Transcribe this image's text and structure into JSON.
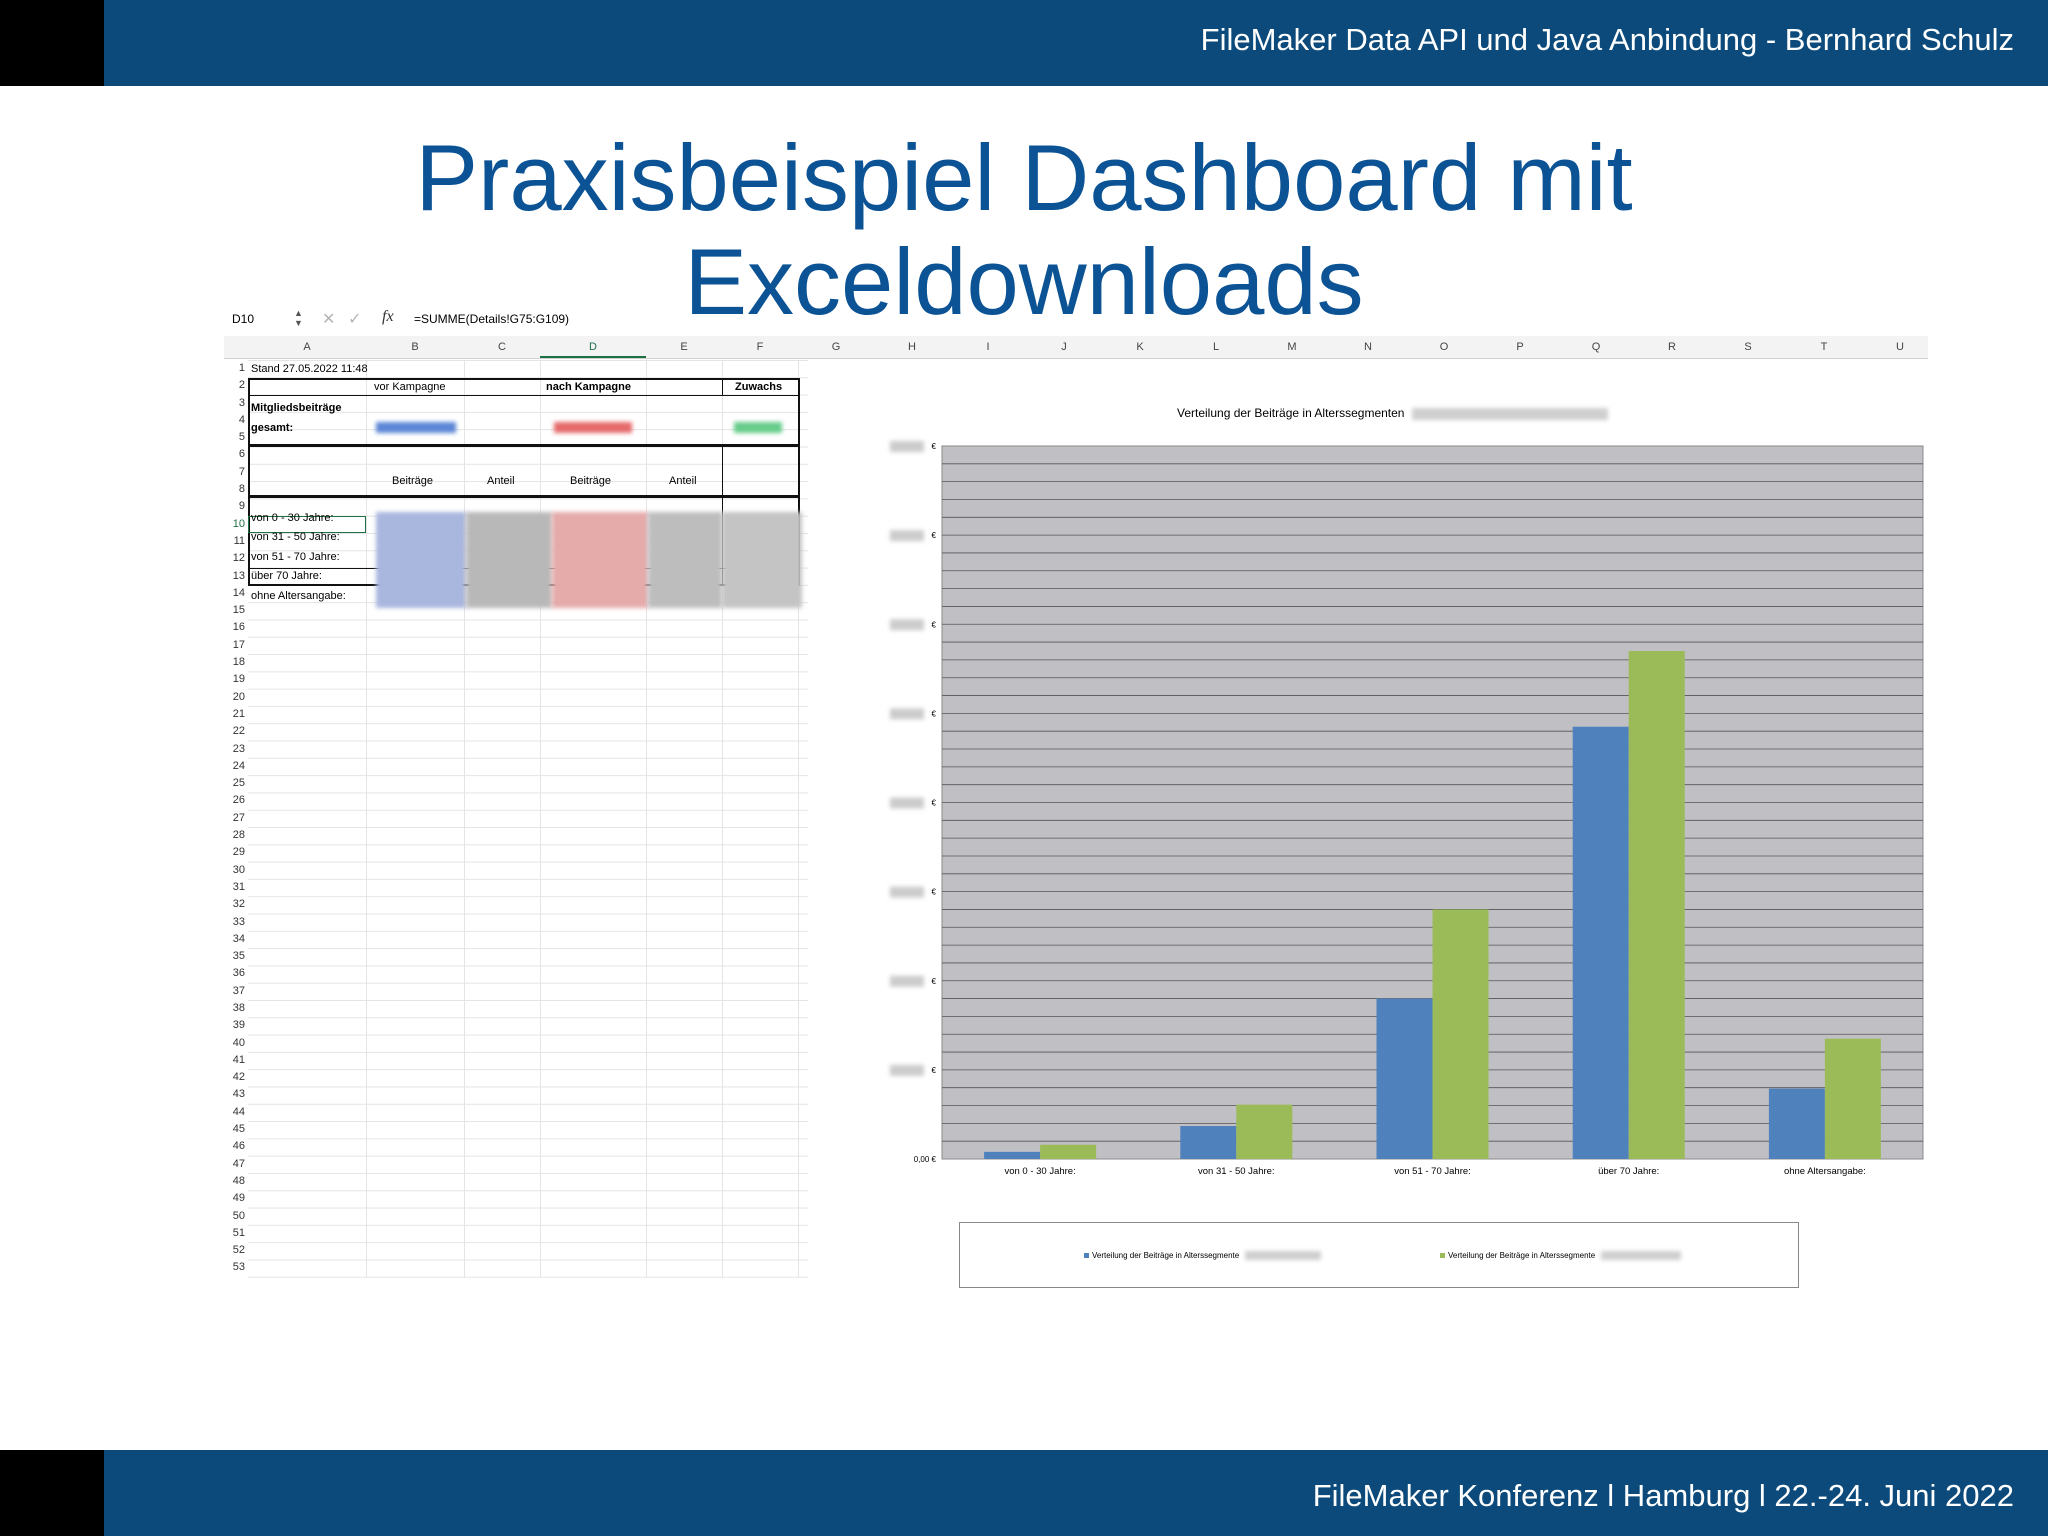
{
  "header": {
    "text": "FileMaker Data API und Java Anbindung - Bernhard Schulz"
  },
  "title": {
    "line1": "Praxisbeispiel Dashboard mit",
    "line2": "Exceldownloads"
  },
  "footer": {
    "text": "FileMaker Konferenz l Hamburg l  22.-24. Juni 2022"
  },
  "spreadsheet": {
    "cell_ref": "D10",
    "formula": "=SUMME(Details!G75:G109)",
    "columns": [
      "A",
      "B",
      "C",
      "D",
      "E",
      "F",
      "G",
      "H",
      "I",
      "J",
      "K",
      "L",
      "M",
      "N",
      "O",
      "P",
      "Q",
      "R",
      "S",
      "T",
      "U"
    ],
    "selected_column": "D",
    "selected_row": 10,
    "row_count": 53,
    "cells": {
      "a1": "Stand 27.05.2022 11:48",
      "b2": "vor Kampagne",
      "d2": "nach Kampagne",
      "f2": "Zuwachs",
      "a3": "Mitgliedsbeiträge",
      "a4": "gesamt:",
      "b7": "Beiträge",
      "c7": "Anteil",
      "d7": "Beiträge",
      "e7": "Anteil",
      "a9": "von 0 - 30 Jahre:",
      "a10": "von 31 - 50 Jahre:",
      "a11": "von 51 - 70 Jahre:",
      "a12": "über 70 Jahre:",
      "a13": "ohne Altersangabe:"
    },
    "colors": {
      "blue": "#4f7fc1",
      "red": "#e05a5a",
      "green": "#5cc080"
    }
  },
  "chart_data": {
    "type": "bar",
    "title": "Verteilung der Beiträge in Alterssegmenten",
    "categories": [
      "von 0 - 30 Jahre:",
      "von 31 - 50 Jahre:",
      "von 51 - 70 Jahre:",
      "über 70 Jahre:",
      "ohne Altersangabe:"
    ],
    "series": [
      {
        "name": "Verteilung der Beiträge in Alterssegmente",
        "color": "#4f81bd",
        "values": [
          0.8,
          3.7,
          18,
          48.5,
          7.9
        ]
      },
      {
        "name": "Verteilung der Beiträge in Alterssegmente",
        "color": "#9bbb59",
        "values": [
          1.6,
          6.1,
          28,
          57,
          13.5
        ]
      }
    ],
    "ylim": [
      0,
      80
    ],
    "y_tick_labels": [
      "€",
      "€",
      "€",
      "€",
      "€",
      "€",
      "€",
      "€",
      "0,00 €"
    ],
    "grid": true,
    "plot_background": "#c0bfc3",
    "legend_position": "bottom"
  }
}
